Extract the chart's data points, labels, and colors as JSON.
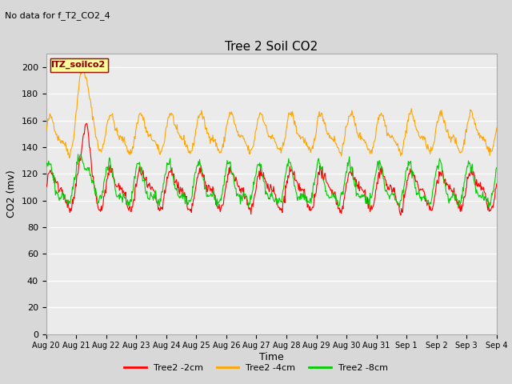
{
  "title": "Tree 2 Soil CO2",
  "top_note": "No data for f_T2_CO2_4",
  "ylabel": "CO2 (mv)",
  "xlabel": "Time",
  "ylim": [
    0,
    210
  ],
  "yticks": [
    0,
    20,
    40,
    60,
    80,
    100,
    120,
    140,
    160,
    180,
    200
  ],
  "legend_box_label": "TZ_soilco2",
  "legend_box_color": "#FFFF99",
  "legend_box_border": "#8B0000",
  "legend_box_text_color": "#8B0000",
  "background_color": "#D8D8D8",
  "plot_bg_color": "#EBEBEB",
  "grid_color": "#FFFFFF",
  "series": {
    "red": {
      "label": "Tree2 -2cm",
      "color": "#FF0000"
    },
    "orange": {
      "label": "Tree2 -4cm",
      "color": "#FFA500"
    },
    "green": {
      "label": "Tree2 -8cm",
      "color": "#00CC00"
    }
  },
  "x_labels": [
    "Aug 20",
    "Aug 21",
    "Aug 22",
    "Aug 23",
    "Aug 24",
    "Aug 25",
    "Aug 26",
    "Aug 27",
    "Aug 28",
    "Aug 29",
    "Aug 30",
    "Aug 31",
    "Sep 1",
    "Sep 2",
    "Sep 3",
    "Sep 4"
  ],
  "num_days": 15
}
